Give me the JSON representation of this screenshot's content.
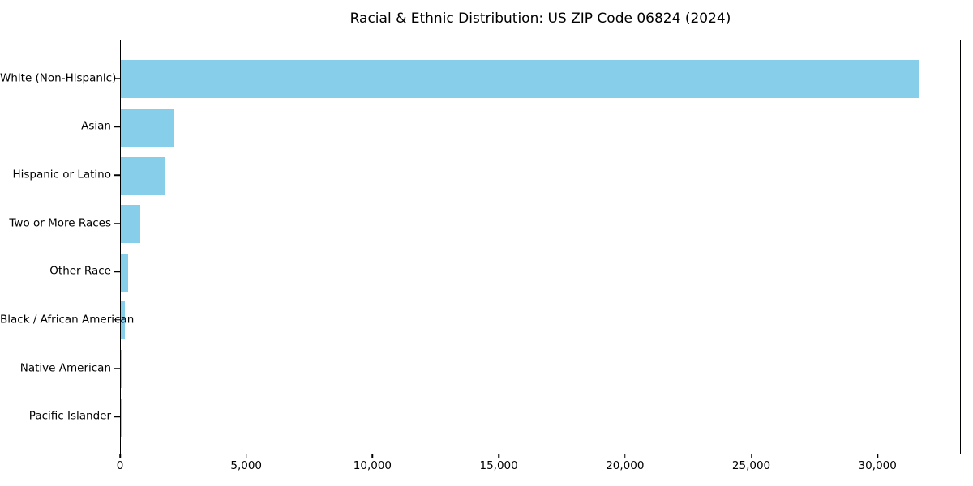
{
  "chart_data": {
    "type": "bar",
    "orientation": "horizontal",
    "title": "Racial & Ethnic Distribution: US ZIP Code 06824 (2024)",
    "categories": [
      "White (Non-Hispanic)",
      "Asian",
      "Hispanic or Latino",
      "Two or More Races",
      "Other Race",
      "Black / African American",
      "Native American",
      "Pacific Islander"
    ],
    "values": [
      31700,
      2130,
      1770,
      760,
      290,
      160,
      20,
      5
    ],
    "xlabel": "",
    "ylabel": "",
    "xlim": [
      0,
      33300
    ],
    "x_ticks": [
      0,
      5000,
      10000,
      15000,
      20000,
      25000,
      30000
    ],
    "x_tick_labels": [
      "0",
      "5,000",
      "10,000",
      "15,000",
      "20,000",
      "25,000",
      "30,000"
    ],
    "bar_color": "#87CEEB",
    "grid": false,
    "legend_position": "none"
  }
}
